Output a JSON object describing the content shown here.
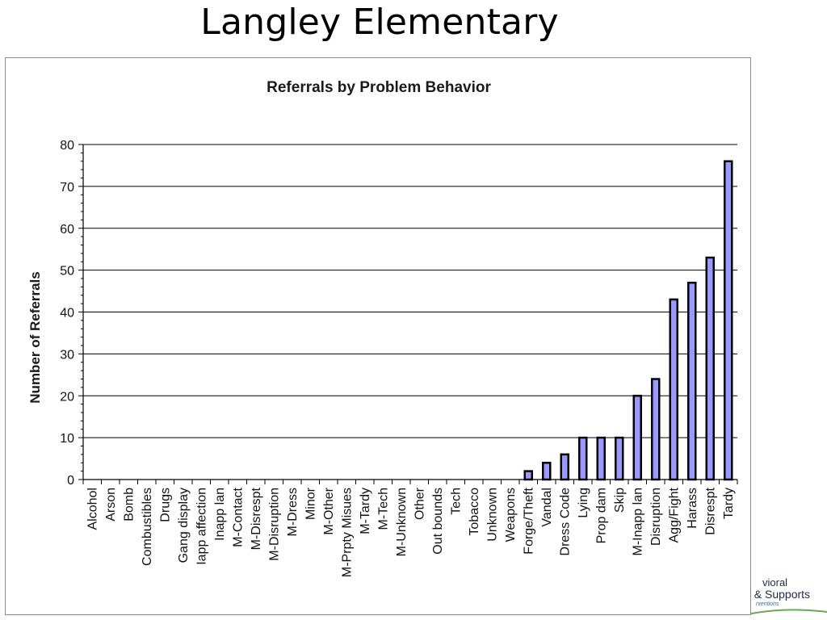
{
  "slide": {
    "title": "Langley Elementary"
  },
  "logo": {
    "line1": "vioral",
    "line2": "; & Supports",
    "line3": "rventions"
  },
  "colors": {
    "bar_fill": "#9999ff",
    "bar_stroke": "#000000",
    "gridline": "#000000"
  },
  "chart_data": {
    "type": "bar",
    "title": "Referrals by Problem Behavior",
    "xlabel": "",
    "ylabel": "Number of Referrals",
    "ylim": [
      0,
      80
    ],
    "yticks": [
      0,
      10,
      20,
      30,
      40,
      50,
      60,
      70,
      80
    ],
    "grid": true,
    "categories": [
      "Alcohol",
      "Arson",
      "Bomb",
      "Combustibles",
      "Drugs",
      "Gang display",
      "Iapp affection",
      "Inapp lan",
      "M-Contact",
      "M-Disrespt",
      "M-Disruption",
      "M-Dress",
      "Minor",
      "M-Other",
      "M-Prpty Misues",
      "M-Tardy",
      "M-Tech",
      "M-Unknown",
      "Other",
      "Out bounds",
      "Tech",
      "Tobacco",
      "Unknown",
      "Weapons",
      "Forge/Theft",
      "Vandal",
      "Dress Code",
      "Lying",
      "Prop dam",
      "Skip",
      "M-Inapp lan",
      "Disruption",
      "Agg/Fight",
      "Harass",
      "Disrespt",
      "Tardy"
    ],
    "values": [
      0,
      0,
      0,
      0,
      0,
      0,
      0,
      0,
      0,
      0,
      0,
      0,
      0,
      0,
      0,
      0,
      0,
      0,
      0,
      0,
      0,
      0,
      0,
      0,
      2,
      4,
      6,
      10,
      10,
      10,
      20,
      24,
      43,
      47,
      53,
      76
    ]
  }
}
